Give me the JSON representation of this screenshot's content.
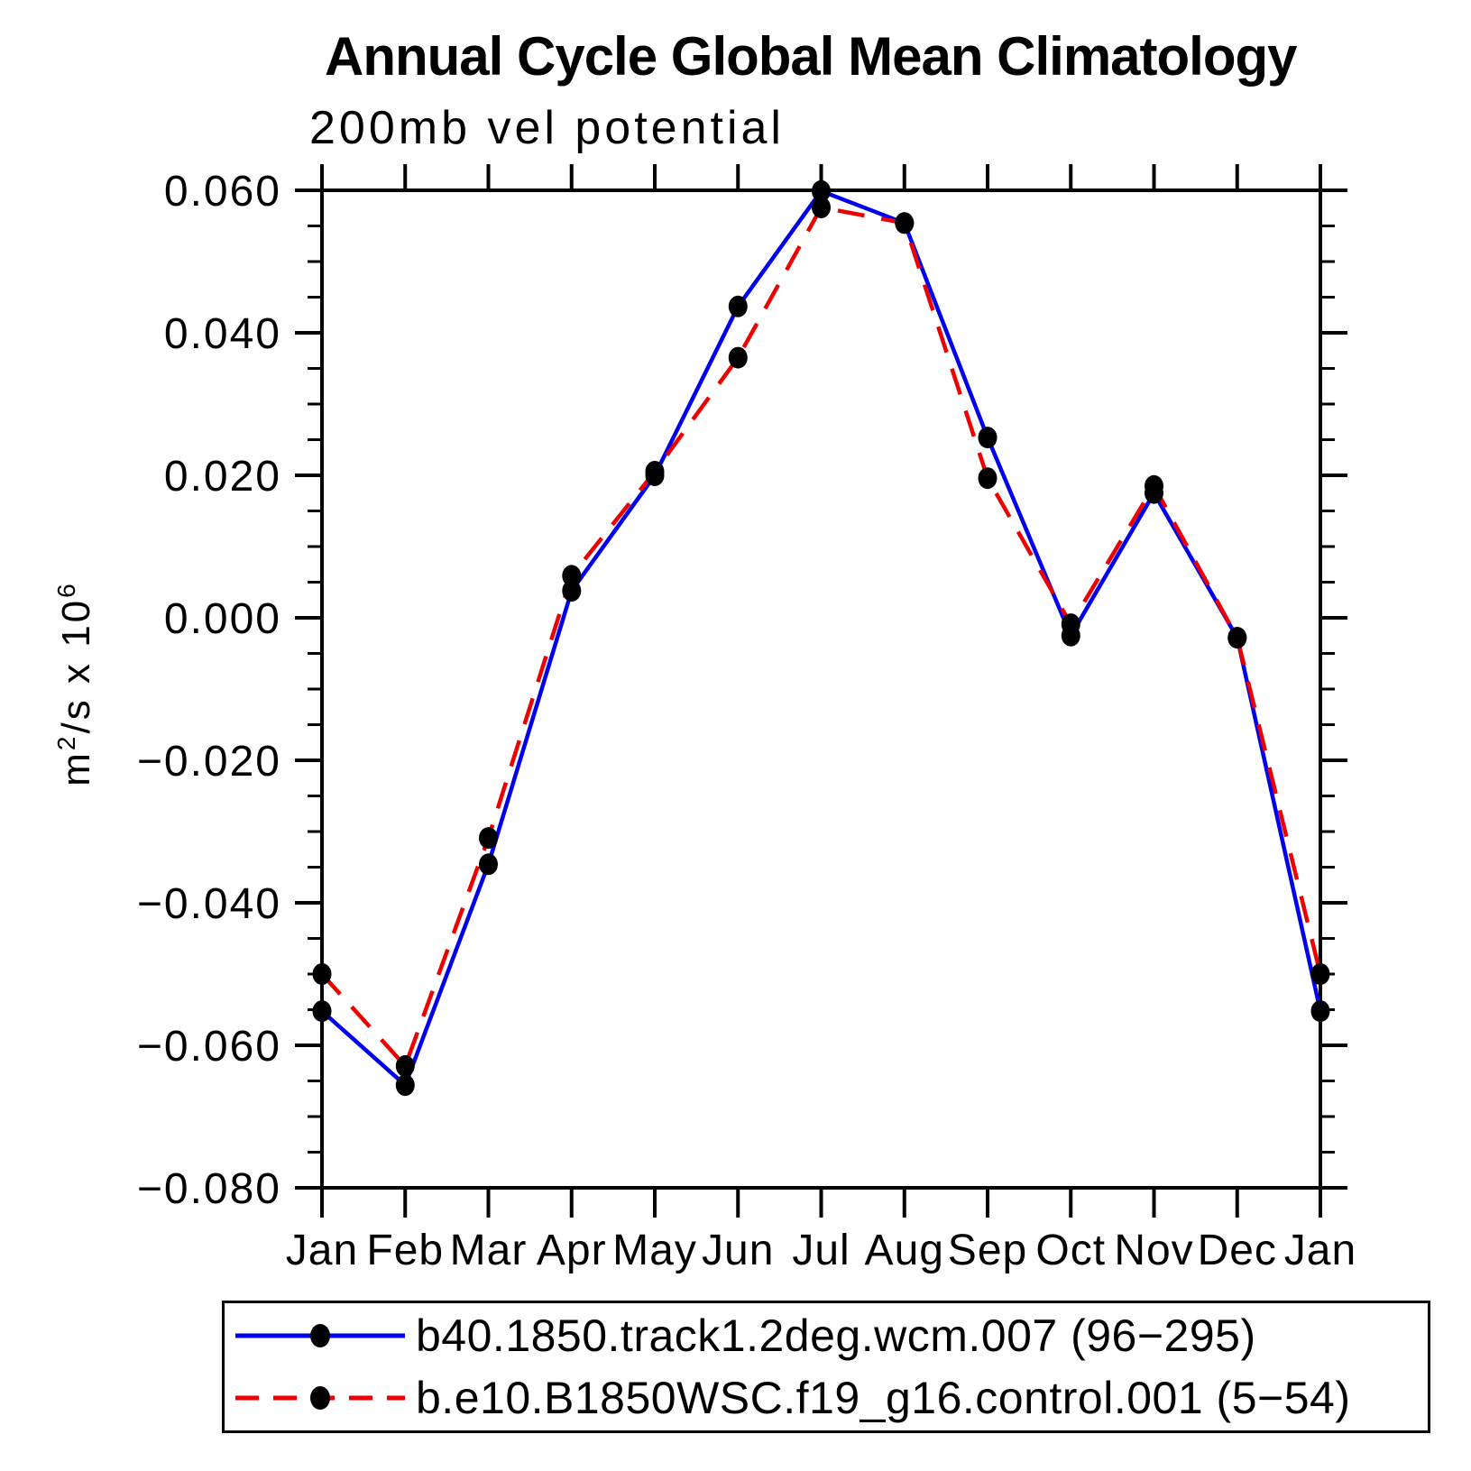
{
  "title": "Annual Cycle Global Mean Climatology",
  "subtitle": "200mb vel potential",
  "y_axis": {
    "unit_pre": "m",
    "unit_sup": "2",
    "unit_mid": "/s x 10",
    "unit_exp": "6",
    "min": -0.08,
    "max": 0.06,
    "minor_step": 0.005,
    "major_ticks": [
      {
        "value": 0.06,
        "label": "0.060"
      },
      {
        "value": 0.04,
        "label": "0.040"
      },
      {
        "value": 0.02,
        "label": "0.020"
      },
      {
        "value": 0.0,
        "label": "0.000"
      },
      {
        "value": -0.02,
        "label": "−0.020"
      },
      {
        "value": -0.04,
        "label": "−0.040"
      },
      {
        "value": -0.06,
        "label": "−0.060"
      },
      {
        "value": -0.08,
        "label": "−0.080"
      }
    ]
  },
  "x_axis": {
    "labels": [
      "Jan",
      "Feb",
      "Mar",
      "Apr",
      "May",
      "Jun",
      "Jul",
      "Aug",
      "Sep",
      "Oct",
      "Nov",
      "Dec",
      "Jan"
    ]
  },
  "chart_data": {
    "type": "line",
    "title": "200mb vel potential",
    "xlabel": "",
    "ylabel": "m2/s x 10^6",
    "ylim": [
      -0.08,
      0.06
    ],
    "grid": false,
    "legend_position": "bottom",
    "categories": [
      "Jan",
      "Feb",
      "Mar",
      "Apr",
      "May",
      "Jun",
      "Jul",
      "Aug",
      "Sep",
      "Oct",
      "Nov",
      "Dec",
      "Jan"
    ],
    "series": [
      {
        "name": "b40.1850.track1.2deg.wcm.007 (96−295)",
        "color": "#0000ee",
        "style": "solid",
        "marker": "circle",
        "marker_color": "#000000",
        "values": [
          -0.0552,
          -0.0656,
          -0.0346,
          0.0038,
          0.02,
          0.0437,
          0.0599,
          0.0554,
          0.0253,
          -0.0025,
          0.0175,
          -0.0028,
          -0.0552
        ]
      },
      {
        "name": "b.e10.B1850WSC.f19_g16.control.001 (5−54)",
        "color": "#ee0000",
        "style": "dashed",
        "marker": "circle",
        "marker_color": "#000000",
        "values": [
          -0.05,
          -0.0629,
          -0.0309,
          0.0059,
          0.0205,
          0.0365,
          0.0576,
          0.0554,
          0.0196,
          -0.0009,
          0.0185,
          -0.0028,
          -0.05
        ]
      }
    ]
  }
}
